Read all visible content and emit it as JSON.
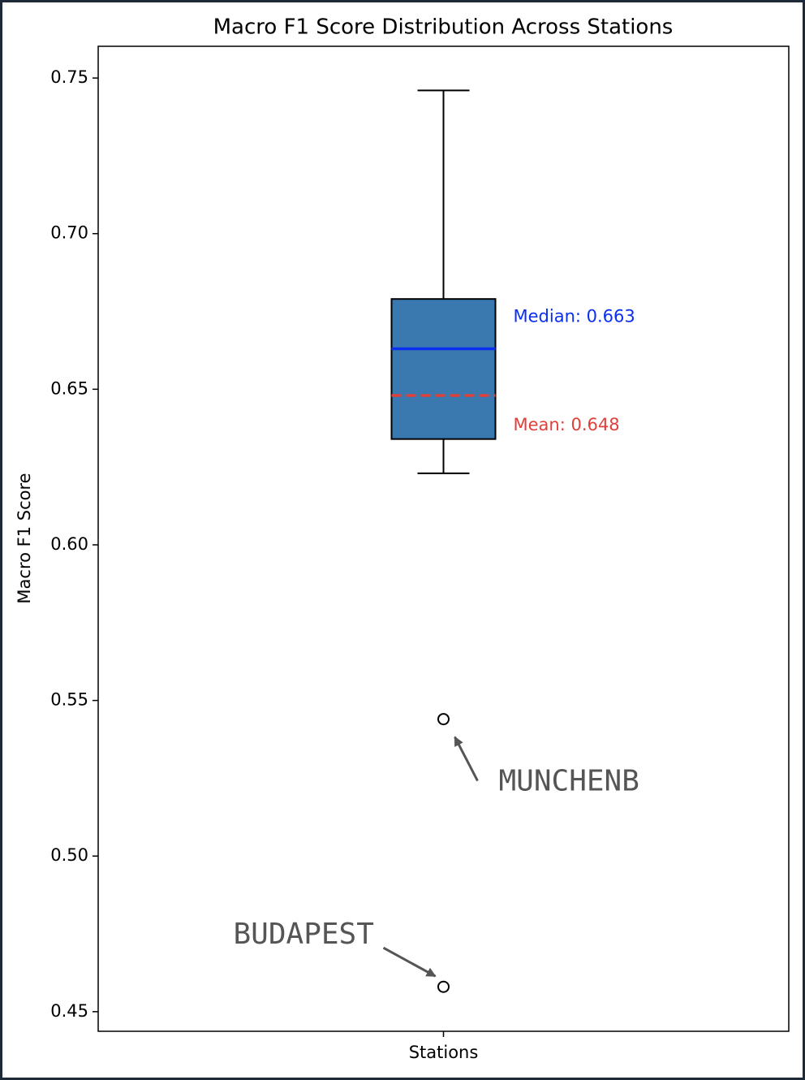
{
  "chart_data": {
    "type": "box",
    "title": "Macro F1 Score Distribution Across Stations",
    "ylabel": "Macro F1 Score",
    "categories": [
      "Stations"
    ],
    "box": {
      "whisker_low": 0.623,
      "q1": 0.634,
      "median": 0.663,
      "q3": 0.679,
      "whisker_high": 0.746,
      "mean": 0.648,
      "median_label": "Median: 0.663",
      "mean_label": "Mean: 0.648",
      "outliers": [
        {
          "name": "MUNCHENB",
          "value": 0.544
        },
        {
          "name": "BUDAPEST",
          "value": 0.458
        }
      ]
    },
    "box_color": "#3a78b0",
    "median_color": "#0a2ff0",
    "mean_color": "#e0403a",
    "ylim": [
      0.4437,
      0.7602
    ],
    "yticks": [
      0.45,
      {
        "value": 0.5,
        "label": "0.50"
      },
      0.55,
      {
        "value": 0.6,
        "label": "0.60"
      },
      0.65,
      {
        "value": 0.7,
        "label": "0.70"
      },
      0.75
    ],
    "grid": false
  }
}
